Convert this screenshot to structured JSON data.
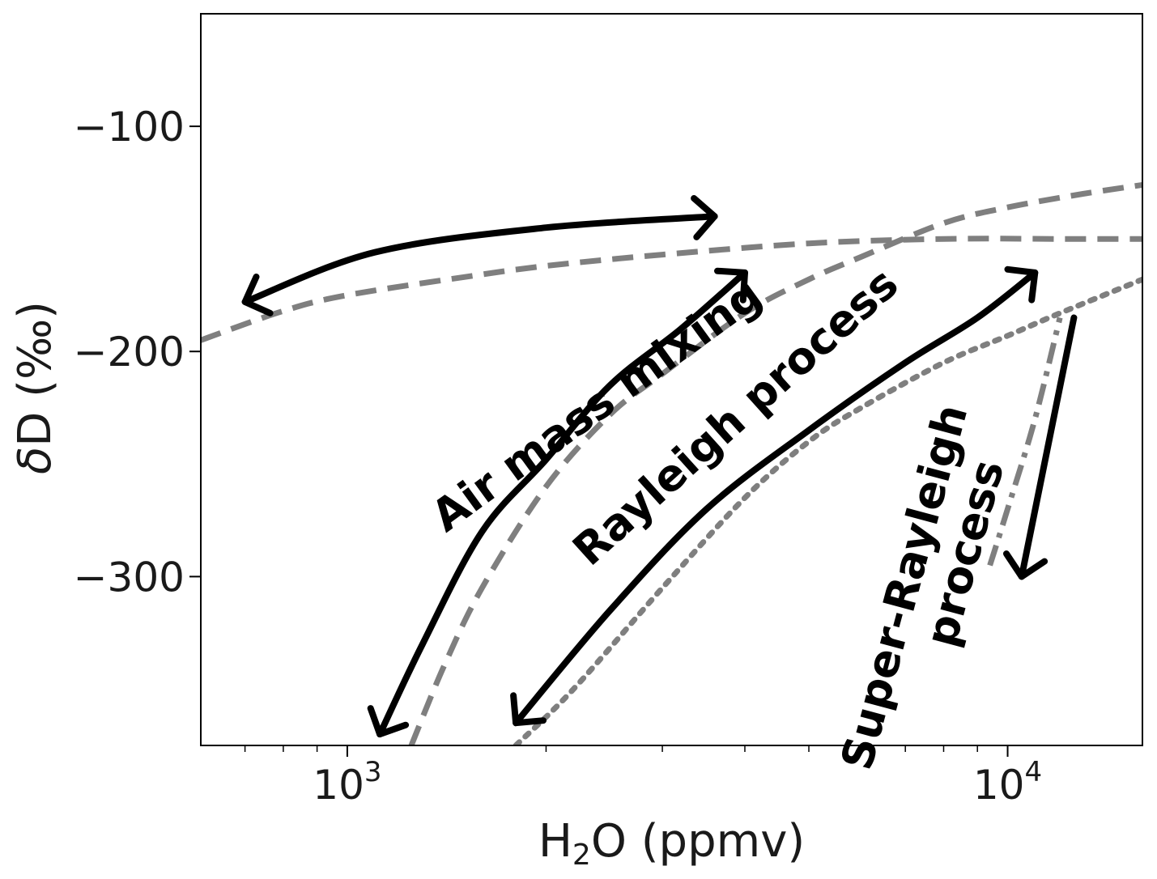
{
  "chart_data": {
    "type": "line",
    "xscale": "log",
    "xlim": [
      600,
      16000
    ],
    "ylim": [
      -375,
      -50
    ],
    "xticks": [
      {
        "base": "10",
        "exp": "3",
        "value": 1000
      },
      {
        "base": "10",
        "exp": "4",
        "value": 10000
      }
    ],
    "yticks": [
      {
        "label": "−100",
        "value": -100
      },
      {
        "label": "−200",
        "value": -200
      },
      {
        "label": "−300",
        "value": -300
      }
    ],
    "xlabel": {
      "pre": "H",
      "sub": "2",
      "post": "O (ppmv)"
    },
    "ylabel": {
      "greek": "δ",
      "rest": "D (‰)"
    },
    "grid": false,
    "colors": {
      "curves": "#7f7f7f",
      "arrows": "#000000",
      "axes": "#000000"
    },
    "series": [
      {
        "style": "dashed",
        "x": [
          600,
          800,
          1000,
          1500,
          2000,
          3000,
          5000,
          8000,
          12000,
          16000
        ],
        "y": [
          -195,
          -182,
          -175,
          -167,
          -162,
          -157,
          -152,
          -150,
          -150,
          -150
        ]
      },
      {
        "style": "dashed",
        "x": [
          1250,
          1400,
          1600,
          2000,
          2500,
          3000,
          4000,
          5000,
          6000,
          8000,
          10000,
          13000,
          16000
        ],
        "y": [
          -375,
          -340,
          -305,
          -260,
          -228,
          -210,
          -183,
          -168,
          -158,
          -143,
          -136,
          -130,
          -126
        ]
      },
      {
        "style": "dotted",
        "x": [
          1800,
          2200,
          3000,
          4000,
          5000,
          6000,
          8000,
          10000,
          12000,
          16000
        ],
        "y": [
          -375,
          -350,
          -305,
          -265,
          -240,
          -225,
          -205,
          -193,
          -183,
          -168
        ]
      },
      {
        "style": "dashdot",
        "x": [
          9400,
          10000,
          11000,
          12000
        ],
        "y": [
          -295,
          -270,
          -230,
          -185
        ]
      }
    ],
    "arrows": [
      {
        "x": [
          3600,
          2000,
          1100,
          700
        ],
        "y": [
          -140,
          -145,
          -156,
          -178
        ],
        "heads": "both"
      },
      {
        "x": [
          1120,
          1300,
          1600,
          2000,
          2500,
          3200,
          4000
        ],
        "y": [
          -370,
          -330,
          -280,
          -248,
          -215,
          -190,
          -165
        ],
        "heads": "both"
      },
      {
        "x": [
          1800,
          2500,
          3500,
          5000,
          7000,
          9000,
          11000
        ],
        "y": [
          -365,
          -315,
          -270,
          -235,
          -205,
          -185,
          -165
        ],
        "heads": "both"
      },
      {
        "x": [
          12600,
          10500
        ],
        "y": [
          -185,
          -300
        ],
        "heads": "end"
      }
    ],
    "annotations": [
      {
        "text": "Air mass mixing",
        "x": 2400,
        "y": -225,
        "rotation": -36
      },
      {
        "text": "Rayleigh process",
        "x": 3900,
        "y": -230,
        "rotation": -42
      },
      {
        "text": "Super-Rayleigh",
        "x": 7050,
        "y": -305,
        "rotation": -75
      },
      {
        "text": "process",
        "x": 8700,
        "y": -290,
        "rotation": -75
      }
    ]
  }
}
